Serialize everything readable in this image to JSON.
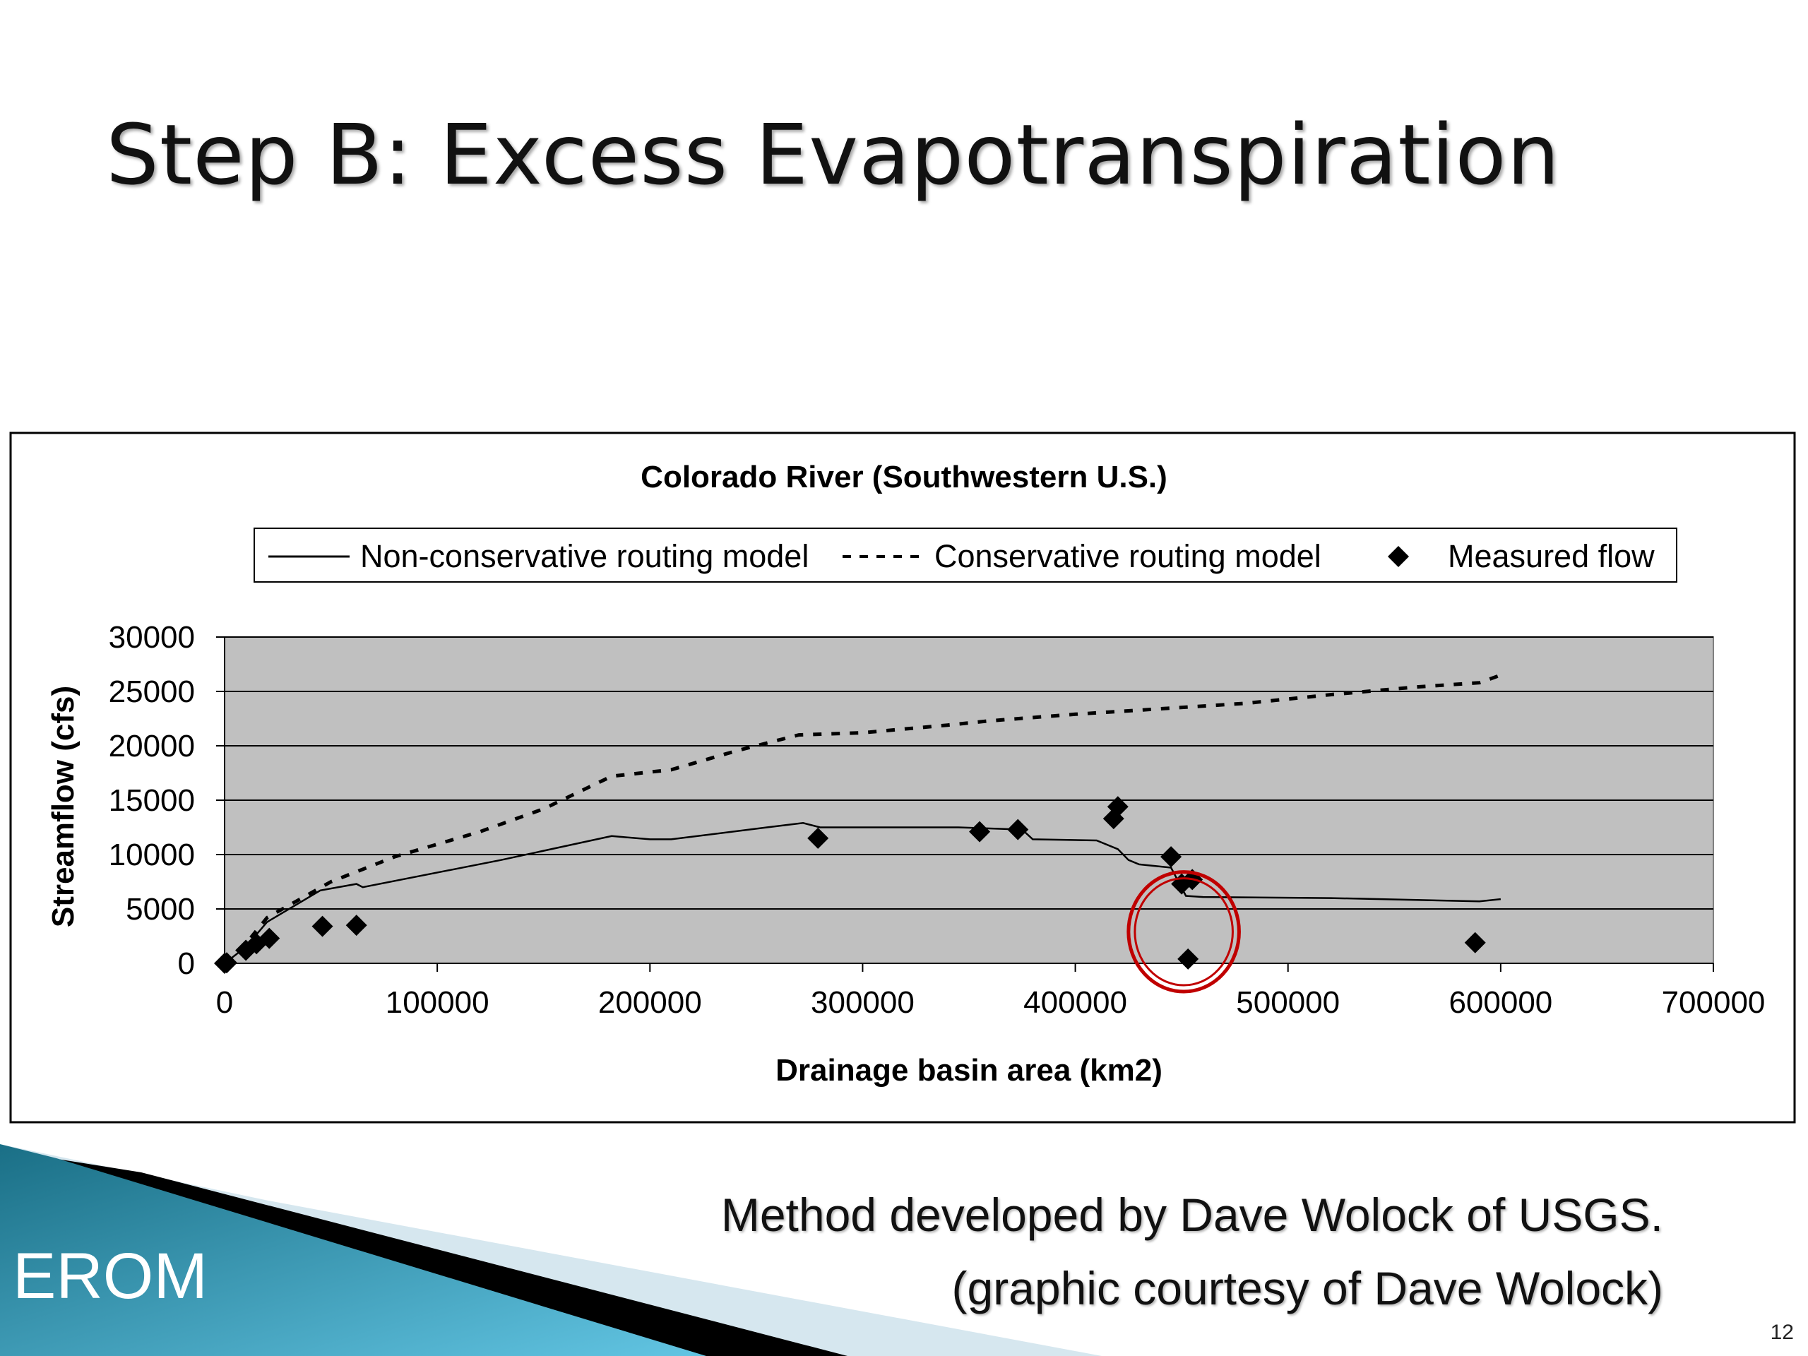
{
  "slide": {
    "title": "Step B: Excess Evapotranspiration",
    "credit_line1": "Method developed by Dave Wolock of USGS.",
    "credit_line2": "(graphic courtesy of Dave Wolock)",
    "footer_label": "EROM",
    "page_number": "12"
  },
  "colors": {
    "plot_background": "#c0c0c0",
    "highlight_circle": "#c00000",
    "footer_gradient_start": "#1a6f86",
    "footer_gradient_end": "#62c5e3"
  },
  "chart_data": {
    "type": "line",
    "title": "Colorado River (Southwestern U.S.)",
    "xlabel": "Drainage basin area (km2)",
    "ylabel": "Streamflow (cfs)",
    "xlim": [
      0,
      700000
    ],
    "ylim": [
      0,
      30000
    ],
    "x_ticks": [
      "0",
      "100000",
      "200000",
      "300000",
      "400000",
      "500000",
      "600000",
      "700000"
    ],
    "y_ticks": [
      "0",
      "5000",
      "10000",
      "15000",
      "20000",
      "25000",
      "30000"
    ],
    "grid": "horizontal",
    "legend": "top",
    "series": [
      {
        "name": "Non-conservative routing model",
        "style": "solid",
        "points": [
          [
            0,
            0
          ],
          [
            10000,
            1500
          ],
          [
            20000,
            3800
          ],
          [
            45000,
            6700
          ],
          [
            62000,
            7300
          ],
          [
            65000,
            7000
          ],
          [
            130000,
            9500
          ],
          [
            182000,
            11700
          ],
          [
            200000,
            11400
          ],
          [
            210000,
            11400
          ],
          [
            255000,
            12500
          ],
          [
            272000,
            12900
          ],
          [
            280000,
            12500
          ],
          [
            345000,
            12500
          ],
          [
            375000,
            12300
          ],
          [
            380000,
            11400
          ],
          [
            410000,
            11300
          ],
          [
            420000,
            10500
          ],
          [
            425000,
            9500
          ],
          [
            430000,
            9100
          ],
          [
            445000,
            8800
          ],
          [
            452000,
            6200
          ],
          [
            460000,
            6100
          ],
          [
            520000,
            6000
          ],
          [
            590000,
            5700
          ],
          [
            600000,
            5900
          ]
        ]
      },
      {
        "name": "Conservative routing model",
        "style": "dashed",
        "points": [
          [
            0,
            0
          ],
          [
            10000,
            1800
          ],
          [
            20000,
            4200
          ],
          [
            50000,
            7500
          ],
          [
            80000,
            9800
          ],
          [
            120000,
            12100
          ],
          [
            150000,
            14200
          ],
          [
            182000,
            17200
          ],
          [
            210000,
            17800
          ],
          [
            240000,
            19500
          ],
          [
            270000,
            21000
          ],
          [
            300000,
            21200
          ],
          [
            340000,
            21900
          ],
          [
            360000,
            22300
          ],
          [
            400000,
            22900
          ],
          [
            440000,
            23400
          ],
          [
            480000,
            23900
          ],
          [
            520000,
            24700
          ],
          [
            560000,
            25400
          ],
          [
            590000,
            25800
          ],
          [
            600000,
            26500
          ]
        ]
      },
      {
        "name": "Measured flow",
        "style": "markers",
        "points": [
          [
            0,
            0
          ],
          [
            1000,
            50
          ],
          [
            10000,
            1200
          ],
          [
            15000,
            1800
          ],
          [
            21000,
            2300
          ],
          [
            46000,
            3400
          ],
          [
            62000,
            3500
          ],
          [
            279000,
            11500
          ],
          [
            355000,
            12100
          ],
          [
            373000,
            12300
          ],
          [
            418000,
            13300
          ],
          [
            420000,
            14400
          ],
          [
            445000,
            9800
          ],
          [
            450000,
            7300
          ],
          [
            455000,
            7700
          ],
          [
            453000,
            400
          ],
          [
            588000,
            1900
          ]
        ]
      }
    ],
    "annotation": {
      "type": "circle",
      "center": [
        451000,
        2900
      ],
      "rx": 26000,
      "ry": 5500
    }
  }
}
